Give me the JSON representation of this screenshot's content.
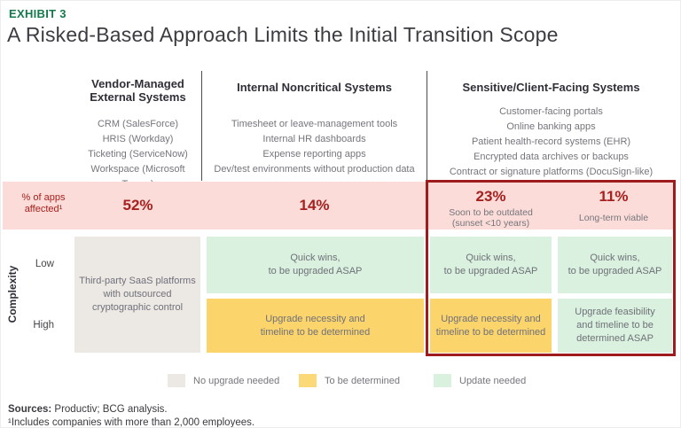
{
  "exhibit": {
    "eyebrow": "EXHIBIT 3",
    "title": "A Risked-Based Approach Limits the Initial Transition Scope"
  },
  "columns": [
    {
      "title": "Vendor-Managed\nExternal Systems",
      "items": [
        "CRM (SalesForce)",
        "HRIS (Workday)",
        "Ticketing (ServiceNow)",
        "Workspace (Microsoft Teams)"
      ]
    },
    {
      "title": "Internal Noncritical Systems",
      "items": [
        "Timesheet or leave-management tools",
        "Internal HR dashboards",
        "Expense reporting apps",
        "Dev/test environments without production data"
      ]
    },
    {
      "title": "Sensitive/Client-Facing Systems",
      "items": [
        "Customer-facing portals",
        "Online banking apps",
        "Patient health-record systems (EHR)",
        "Encrypted data archives or backups",
        "Contract or signature platforms (DocuSign-like)"
      ]
    }
  ],
  "apps_row": {
    "label": "% of apps\naffected¹",
    "vendor_pct": "52%",
    "internal_pct": "14%",
    "sensitive_outdated_pct": "23%",
    "sensitive_outdated_caption": "Soon to be outdated\n(sunset <10 years)",
    "sensitive_viable_pct": "11%",
    "sensitive_viable_caption": "Long-term viable"
  },
  "matrix": {
    "axis_label": "Complexity",
    "row_low_label": "Low",
    "row_high_label": "High",
    "vendor_cell": "Third-party SaaS platforms\nwith outsourced\ncryptographic control",
    "internal_low": "Quick wins,\nto be upgraded ASAP",
    "internal_high": "Upgrade necessity and\ntimeline to be determined",
    "outdated_low": "Quick wins,\nto be upgraded ASAP",
    "outdated_high": "Upgrade necessity and\ntimeline to be determined",
    "viable_low": "Quick wins,\nto be upgraded ASAP",
    "viable_high": "Upgrade feasibility\nand timeline to be\ndetermined ASAP"
  },
  "legend": [
    {
      "label": "No upgrade needed",
      "color": "#ECE8E4"
    },
    {
      "label": "To be determined",
      "color": "#FBD878"
    },
    {
      "label": "Update needed",
      "color": "#D9F1DE"
    }
  ],
  "footer": {
    "sources_label": "Sources:",
    "sources_text": " Productiv; BCG analysis.",
    "footnote": "¹Includes companies with more than 2,000 employees."
  },
  "colors": {
    "accent_green": "#15794D",
    "highlight_red": "#A6211F",
    "box_border_red": "#9E1B1E",
    "pink_row_bg": "#FBDCD8",
    "gray_cell_bg": "#ECE8E4",
    "green_cell_bg": "#D9F1DE",
    "yellow_cell_bg": "#FBD46C",
    "divider": "#46504A"
  }
}
